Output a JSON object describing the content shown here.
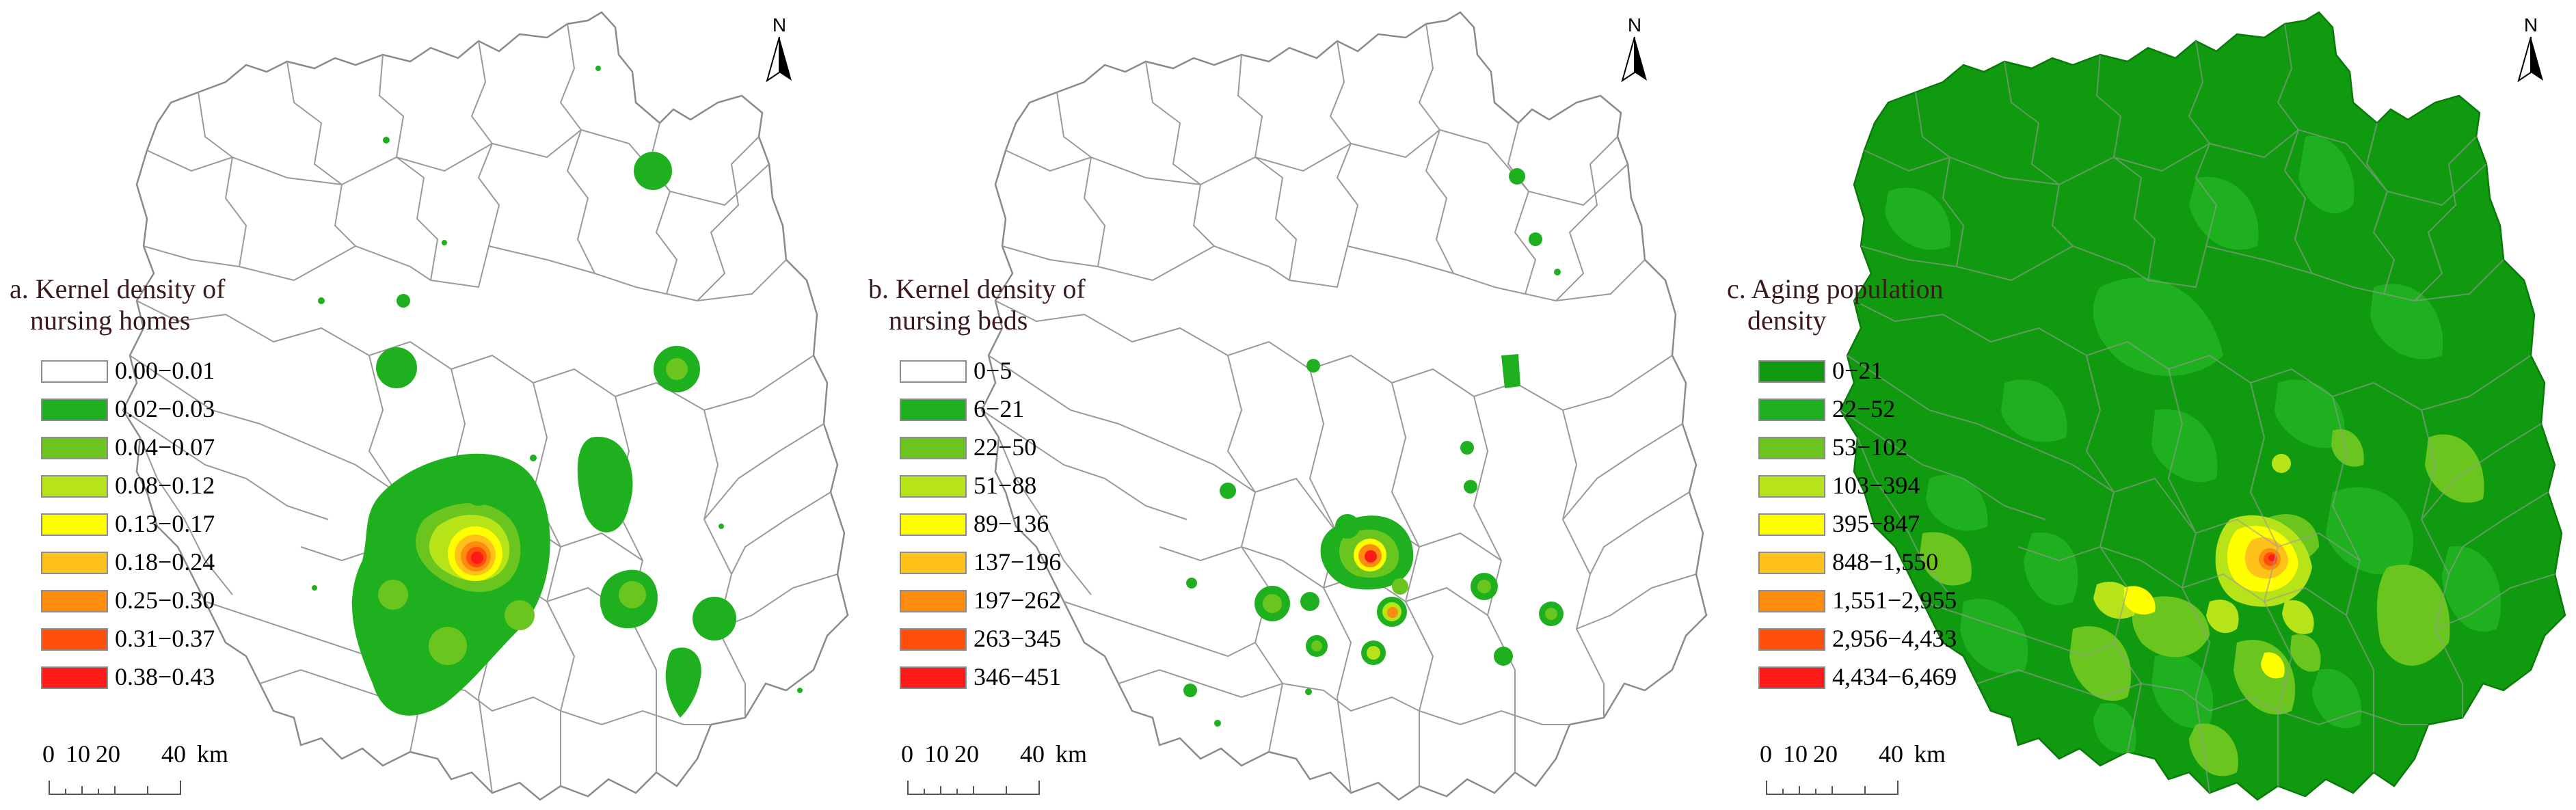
{
  "north_label": "N",
  "panels": [
    {
      "title_line1": "a. Kernel density of",
      "title_line2": "nursing homes",
      "legend": [
        {
          "label": "0.00−0.01",
          "color": "#ffffff"
        },
        {
          "label": "0.02−0.03",
          "color": "#1fb01f"
        },
        {
          "label": "0.04−0.07",
          "color": "#6ac51e"
        },
        {
          "label": "0.08−0.12",
          "color": "#b7e319"
        },
        {
          "label": "0.13−0.17",
          "color": "#ffff00"
        },
        {
          "label": "0.18−0.24",
          "color": "#ffc21a"
        },
        {
          "label": "0.25−0.30",
          "color": "#ff8c0f"
        },
        {
          "label": "0.31−0.37",
          "color": "#ff4f0a"
        },
        {
          "label": "0.38−0.43",
          "color": "#ff1a1a"
        }
      ]
    },
    {
      "title_line1": "b. Kernel density of",
      "title_line2": "nursing beds",
      "legend": [
        {
          "label": "0−5",
          "color": "#ffffff"
        },
        {
          "label": "6−21",
          "color": "#1fb01f"
        },
        {
          "label": "22−50",
          "color": "#6ac51e"
        },
        {
          "label": "51−88",
          "color": "#b7e319"
        },
        {
          "label": "89−136",
          "color": "#ffff00"
        },
        {
          "label": "137−196",
          "color": "#ffc21a"
        },
        {
          "label": "197−262",
          "color": "#ff8c0f"
        },
        {
          "label": "263−345",
          "color": "#ff4f0a"
        },
        {
          "label": "346−451",
          "color": "#ff1a1a"
        }
      ]
    },
    {
      "title_line1": "c. Aging population",
      "title_line2": "density",
      "legend": [
        {
          "label": "0−21",
          "color": "#0f9a0f"
        },
        {
          "label": "22−52",
          "color": "#1fb01f"
        },
        {
          "label": "53−102",
          "color": "#6ac51e"
        },
        {
          "label": "103−394",
          "color": "#b7e319"
        },
        {
          "label": "395−847",
          "color": "#ffff00"
        },
        {
          "label": "848−1,550",
          "color": "#ffc21a"
        },
        {
          "label": "1,551−2,955",
          "color": "#ff8c0f"
        },
        {
          "label": "2,956−4,433",
          "color": "#ff4f0a"
        },
        {
          "label": "4,434−6,469",
          "color": "#ff1a1a"
        }
      ]
    }
  ],
  "scale": {
    "tick_0": "0",
    "tick_10": "10",
    "tick_20": "20",
    "tick_40": "40",
    "unit": "km"
  }
}
